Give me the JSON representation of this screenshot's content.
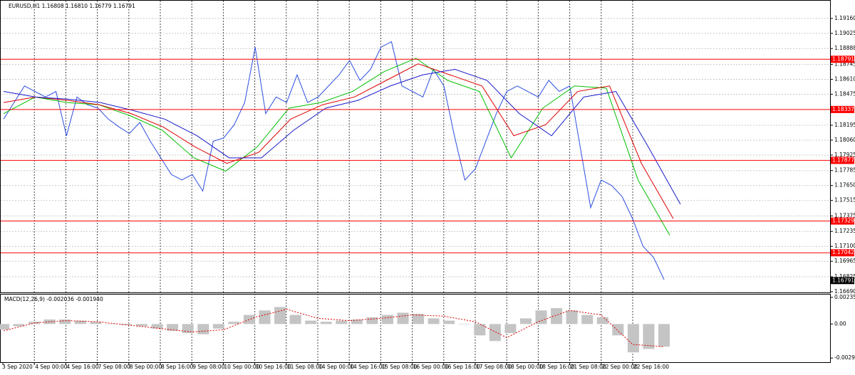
{
  "chart_data": [
    {
      "type": "line",
      "title": "EURUSD,H1  1.16808 1.16810 1.16779 1.16791",
      "x_labels": [
        "3 Sep 2020",
        "4 Sep 00:00",
        "4 Sep 16:00",
        "7 Sep 08:00",
        "8 Sep 00:00",
        "8 Sep 16:00",
        "9 Sep 08:00",
        "10 Sep 00:00",
        "10 Sep 16:00",
        "11 Sep 08:00",
        "14 Sep 00:00",
        "14 Sep 16:00",
        "15 Sep 08:00",
        "16 Sep 00:00",
        "16 Sep 16:00",
        "17 Sep 08:00",
        "18 Sep 00:00",
        "18 Sep 16:00",
        "21 Sep 08:00",
        "22 Sep 00:00",
        "22 Sep 16:00"
      ],
      "series": [
        {
          "color": "#2c4ee0",
          "values": [
            1.1825,
            1.184,
            1.1855,
            1.185,
            1.1845,
            1.185,
            1.181,
            1.1845,
            1.1838,
            1.1835,
            1.1825,
            1.1818,
            1.1812,
            1.1822,
            1.1805,
            1.179,
            1.1775,
            1.177,
            1.1775,
            1.176,
            1.1805,
            1.1808,
            1.182,
            1.184,
            1.189,
            1.183,
            1.1845,
            1.184,
            1.1865,
            1.184,
            1.1845,
            1.1855,
            1.1865,
            1.1878,
            1.186,
            1.187,
            1.189,
            1.1895,
            1.1855,
            1.185,
            1.1845,
            1.187,
            1.1855,
            1.181,
            1.177,
            1.178,
            1.1805,
            1.183,
            1.185,
            1.1855,
            1.185,
            1.1845,
            1.186,
            1.185,
            1.1855,
            1.18,
            1.1745,
            1.177,
            1.1765,
            1.1755,
            1.1735,
            1.171,
            1.17,
            1.168
          ]
        },
        {
          "color": "#00c000",
          "values": [
            1.183,
            1.1845,
            1.184,
            1.1838,
            1.1828,
            1.1815,
            1.179,
            1.1778,
            1.18,
            1.1835,
            1.184,
            1.185,
            1.1868,
            1.188,
            1.186,
            1.185,
            1.179,
            1.1835,
            1.1855,
            1.1853,
            1.177,
            1.172
          ]
        },
        {
          "color": "#e00000",
          "values": [
            1.184,
            1.1845,
            1.1842,
            1.1838,
            1.183,
            1.1818,
            1.18,
            1.1785,
            1.1795,
            1.1825,
            1.1838,
            1.1845,
            1.186,
            1.1875,
            1.1865,
            1.1855,
            1.181,
            1.182,
            1.185,
            1.1855,
            1.1785,
            1.1735
          ]
        },
        {
          "color": "#1a1acc",
          "values": [
            1.185,
            1.1845,
            1.1843,
            1.184,
            1.1833,
            1.1825,
            1.181,
            1.179,
            1.179,
            1.1815,
            1.1835,
            1.1842,
            1.1855,
            1.1865,
            1.187,
            1.186,
            1.183,
            1.181,
            1.1845,
            1.185,
            1.18,
            1.1748
          ]
        }
      ],
      "levels": [
        1.18791,
        1.18337,
        1.17877,
        1.17329,
        1.17042
      ],
      "level_color": "#ff0000",
      "current": 1.16791,
      "ylim": [
        1.16677,
        1.19301
      ],
      "yticks": [
        {
          "value": 1.1916,
          "label": "1.19160"
        },
        1.19025,
        1.18888,
        1.18745,
        {
          "value": 1.1861,
          "label": "1.18610"
        },
        1.18475,
        1.18195,
        {
          "value": 1.1806,
          "label": "1.18060"
        },
        1.17925,
        1.17785,
        {
          "value": 1.1765,
          "label": "1.17650"
        },
        1.17515,
        1.17375,
        1.17235,
        {
          "value": 1.171,
          "label": "1.17100"
        },
        1.16965,
        1.16825,
        {
          "value": 1.1669,
          "label": "1.16690"
        }
      ],
      "grid": true
    },
    {
      "type": "macd",
      "title": "MACD(12,26,9) -0.002036 -0.001940",
      "histogram": [
        -0.0005,
        -0.0002,
        0.0002,
        0.0004,
        0.0004,
        0.0003,
        0.0002,
        0.0,
        -0.0001,
        -0.0002,
        -0.0004,
        -0.0006,
        -0.0008,
        -0.0009,
        -0.0004,
        0.0002,
        0.0008,
        0.0012,
        0.0015,
        0.0008,
        0.0003,
        0.0002,
        0.0003,
        0.0004,
        0.0006,
        0.0008,
        0.001,
        0.0009,
        0.0005,
        0.0003,
        0.0,
        -0.001,
        -0.0015,
        -0.0008,
        0.0005,
        0.0012,
        0.0014,
        0.0012,
        0.0008,
        0.0006,
        -0.001,
        -0.0025,
        -0.0022,
        -0.002
      ],
      "histogram_color": "#c4c4c4",
      "signal": [
        -0.0006,
        0.0001,
        0.0003,
        0.0002,
        -0.0001,
        -0.0004,
        -0.0007,
        -0.0005,
        0.0006,
        0.0013,
        0.0005,
        0.0003,
        0.0005,
        0.0008,
        0.0007,
        0.0002,
        -0.0012,
        0.0002,
        0.0012,
        0.0008,
        -0.0018,
        -0.002
      ],
      "signal_color": "#e00000",
      "ylim": [
        -0.003364,
        0.002595
      ],
      "yticks": [
        0.002352,
        {
          "value": 0,
          "label": "0.00"
        },
        -0.002999
      ]
    }
  ]
}
